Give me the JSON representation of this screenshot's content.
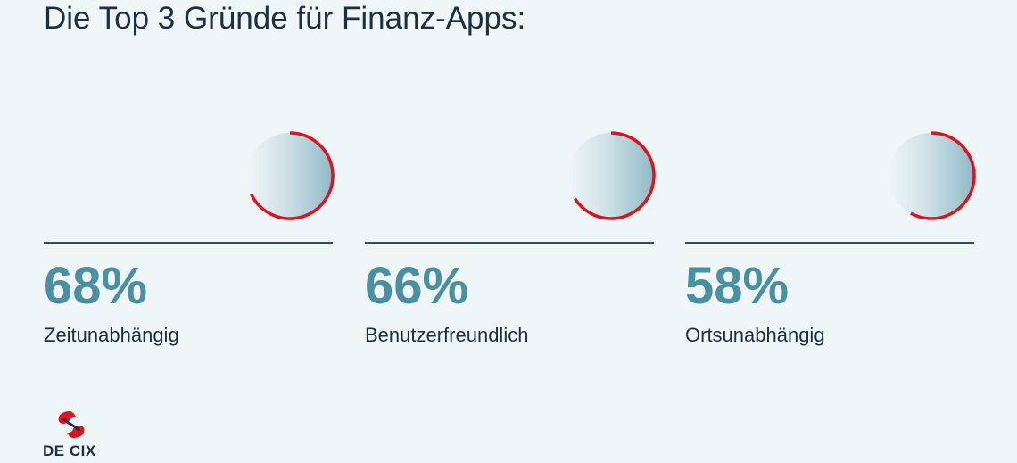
{
  "title": "Die Top 3 Gründe für Finanz-Apps:",
  "colors": {
    "accent": "#e3101e",
    "value": "#4a8fa2",
    "text": "#1c3042",
    "background": "#eff6f8"
  },
  "chart_data": {
    "type": "bar",
    "title": "Die Top 3 Gründe für Finanz-Apps:",
    "categories": [
      "Zeitunabhängig",
      "Benutzerfreundlich",
      "Ortsunabhängig"
    ],
    "values": [
      68,
      66,
      58
    ],
    "value_labels": [
      "68%",
      "66%",
      "58%"
    ],
    "unit": "%",
    "ylim": [
      0,
      100
    ]
  },
  "logo": {
    "text": "DE CIX",
    "icon": "de-cix-logo-icon"
  }
}
